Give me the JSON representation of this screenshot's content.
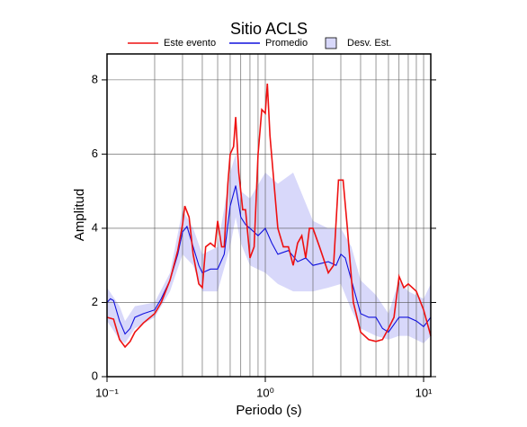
{
  "chart_data": {
    "type": "line",
    "title": "Sitio ACLS",
    "x_label": "Periodo (s)",
    "y_label": "Amplitud",
    "xscale": "log",
    "xlim": [
      0.1,
      11.1
    ],
    "ylim": [
      0,
      8.7
    ],
    "xticks": [
      {
        "value": 0.1,
        "label": "10⁻¹"
      },
      {
        "value": 1,
        "label": "10⁰"
      },
      {
        "value": 10,
        "label": "10¹"
      }
    ],
    "yticks": [
      0,
      2,
      4,
      6,
      8
    ],
    "grid": true,
    "minor_grid": true,
    "series": [
      {
        "name": "Este evento",
        "color": "#ee1111",
        "x": [
          0.1,
          0.11,
          0.12,
          0.13,
          0.14,
          0.15,
          0.17,
          0.2,
          0.22,
          0.25,
          0.28,
          0.3,
          0.31,
          0.33,
          0.35,
          0.38,
          0.4,
          0.42,
          0.45,
          0.48,
          0.5,
          0.53,
          0.55,
          0.58,
          0.6,
          0.63,
          0.65,
          0.68,
          0.72,
          0.75,
          0.8,
          0.85,
          0.9,
          0.95,
          1.0,
          1.03,
          1.07,
          1.12,
          1.2,
          1.3,
          1.4,
          1.5,
          1.6,
          1.7,
          1.8,
          1.9,
          2.0,
          2.2,
          2.5,
          2.7,
          2.9,
          3.1,
          3.3,
          3.6,
          4,
          4.5,
          5,
          5.5,
          6,
          6.5,
          7,
          7.5,
          8,
          9,
          10,
          11.1
        ],
        "values": [
          1.6,
          1.55,
          1.0,
          0.8,
          0.95,
          1.2,
          1.45,
          1.7,
          2.0,
          2.6,
          3.4,
          4.1,
          4.6,
          4.3,
          3.3,
          2.5,
          2.4,
          3.5,
          3.6,
          3.5,
          4.2,
          3.5,
          3.5,
          5.2,
          6.0,
          6.2,
          7.0,
          5.5,
          4.5,
          4.5,
          3.2,
          3.5,
          6.0,
          7.2,
          7.1,
          7.9,
          6.5,
          5.5,
          4.0,
          3.5,
          3.5,
          3.0,
          3.6,
          3.8,
          3.2,
          4.0,
          4.0,
          3.5,
          2.8,
          3.0,
          5.3,
          5.3,
          4.0,
          2.0,
          1.2,
          1.0,
          0.95,
          1.0,
          1.3,
          1.6,
          2.7,
          2.4,
          2.5,
          2.3,
          1.8,
          1.1
        ]
      },
      {
        "name": "Promedio",
        "color": "#1111dd",
        "x": [
          0.1,
          0.105,
          0.11,
          0.12,
          0.13,
          0.14,
          0.15,
          0.17,
          0.2,
          0.22,
          0.25,
          0.28,
          0.3,
          0.32,
          0.35,
          0.38,
          0.4,
          0.45,
          0.5,
          0.55,
          0.6,
          0.65,
          0.7,
          0.75,
          0.8,
          0.9,
          1.0,
          1.1,
          1.2,
          1.4,
          1.6,
          1.8,
          2.0,
          2.5,
          2.8,
          3.0,
          3.2,
          3.5,
          4,
          4.5,
          5,
          5.5,
          6,
          7,
          8,
          9,
          10,
          11.1
        ],
        "values": [
          2.0,
          2.1,
          2.05,
          1.5,
          1.15,
          1.3,
          1.6,
          1.7,
          1.8,
          2.1,
          2.6,
          3.3,
          3.9,
          4.05,
          3.5,
          3.0,
          2.8,
          2.9,
          2.9,
          3.3,
          4.6,
          5.15,
          4.3,
          4.1,
          4.0,
          3.8,
          4.0,
          3.6,
          3.3,
          3.4,
          3.1,
          3.2,
          3.0,
          3.1,
          3.0,
          3.3,
          3.2,
          2.6,
          1.7,
          1.6,
          1.6,
          1.3,
          1.2,
          1.6,
          1.6,
          1.5,
          1.35,
          1.6
        ]
      }
    ],
    "band": {
      "name": "Desv. Est.",
      "color": "#d8d8fa",
      "x": [
        0.1,
        0.12,
        0.13,
        0.15,
        0.2,
        0.25,
        0.3,
        0.35,
        0.4,
        0.5,
        0.6,
        0.65,
        0.7,
        0.8,
        1.0,
        1.2,
        1.5,
        2.0,
        2.5,
        3.0,
        3.5,
        4,
        5,
        6,
        7,
        8,
        10,
        11.1
      ],
      "lower": [
        1.5,
        1.0,
        0.9,
        1.3,
        1.6,
        2.3,
        3.3,
        3.0,
        2.3,
        2.3,
        3.5,
        4.3,
        3.6,
        3.0,
        2.8,
        2.5,
        2.3,
        2.3,
        2.4,
        2.5,
        1.8,
        1.3,
        1.1,
        1.0,
        1.1,
        1.1,
        0.9,
        1.1
      ],
      "upper": [
        2.4,
        1.9,
        1.5,
        1.9,
        2.0,
        2.8,
        4.5,
        4.0,
        3.3,
        3.5,
        5.5,
        6.0,
        5.0,
        4.8,
        5.5,
        5.2,
        5.5,
        4.2,
        4.0,
        4.0,
        3.5,
        2.6,
        2.2,
        1.7,
        2.6,
        2.3,
        2.1,
        2.5
      ]
    }
  }
}
